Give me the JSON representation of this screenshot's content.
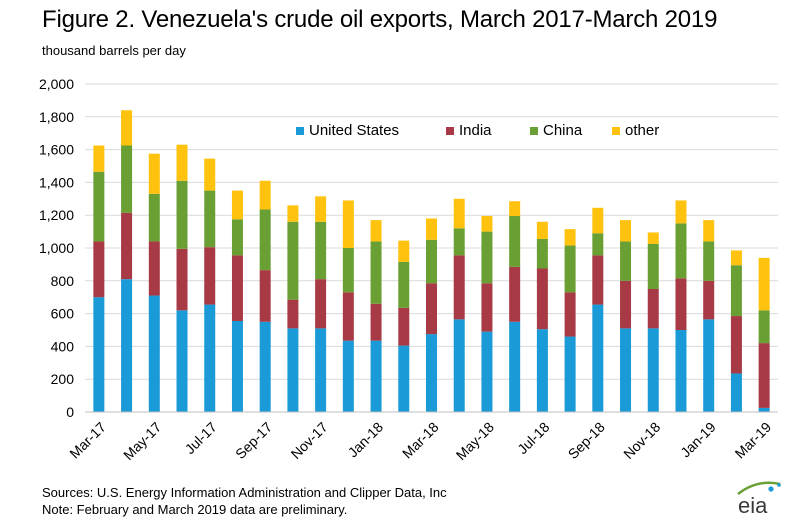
{
  "title": "Figure 2. Venezuela's crude oil exports, March 2017-March 2019",
  "unit_label": "thousand barrels per day",
  "footer": {
    "sources": "Sources: U.S. Energy Information Administration and Clipper Data, Inc",
    "note": "Note: February and March 2019 data are preliminary."
  },
  "logo_text": "eia",
  "colors": {
    "United States": "#1a9ad6",
    "India": "#a83a45",
    "China": "#6aa033",
    "other": "#ffc20e",
    "grid": "#d9d9d9"
  },
  "chart_data": {
    "type": "bar",
    "stacked": true,
    "ylim": [
      0,
      2000
    ],
    "yticks": [
      "0",
      "200",
      "400",
      "600",
      "800",
      "1,000",
      "1,200",
      "1,400",
      "1,600",
      "1,800",
      "2,000"
    ],
    "grid": true,
    "legend_position": "top",
    "categories": [
      "Mar-17",
      "Apr-17",
      "May-17",
      "Jun-17",
      "Jul-17",
      "Aug-17",
      "Sep-17",
      "Oct-17",
      "Nov-17",
      "Dec-17",
      "Jan-18",
      "Feb-18",
      "Mar-18",
      "Apr-18",
      "May-18",
      "Jun-18",
      "Jul-18",
      "Aug-18",
      "Sep-18",
      "Oct-18",
      "Nov-18",
      "Dec-18",
      "Jan-19",
      "Feb-19",
      "Mar-19"
    ],
    "xtick_labels": [
      "Mar-17",
      "",
      "May-17",
      "",
      "Jul-17",
      "",
      "Sep-17",
      "",
      "Nov-17",
      "",
      "Jan-18",
      "",
      "Mar-18",
      "",
      "May-18",
      "",
      "Jul-18",
      "",
      "Sep-18",
      "",
      "Nov-18",
      "",
      "Jan-19",
      "",
      "Mar-19"
    ],
    "series": [
      {
        "name": "United States",
        "values": [
          700,
          810,
          710,
          620,
          655,
          555,
          550,
          510,
          510,
          435,
          435,
          405,
          475,
          565,
          490,
          550,
          505,
          460,
          655,
          510,
          510,
          500,
          565,
          235,
          25
        ]
      },
      {
        "name": "India",
        "values": [
          340,
          405,
          330,
          375,
          350,
          400,
          315,
          175,
          300,
          295,
          225,
          230,
          310,
          390,
          295,
          335,
          370,
          270,
          300,
          290,
          240,
          315,
          235,
          350,
          395
        ]
      },
      {
        "name": "China",
        "values": [
          425,
          410,
          290,
          415,
          345,
          220,
          370,
          475,
          350,
          270,
          380,
          280,
          265,
          165,
          315,
          310,
          180,
          285,
          135,
          240,
          275,
          335,
          240,
          310,
          200
        ]
      },
      {
        "name": "other",
        "values": [
          160,
          215,
          245,
          220,
          195,
          175,
          175,
          100,
          155,
          290,
          130,
          130,
          130,
          180,
          95,
          90,
          105,
          100,
          155,
          130,
          70,
          140,
          130,
          90,
          320
        ]
      }
    ]
  }
}
